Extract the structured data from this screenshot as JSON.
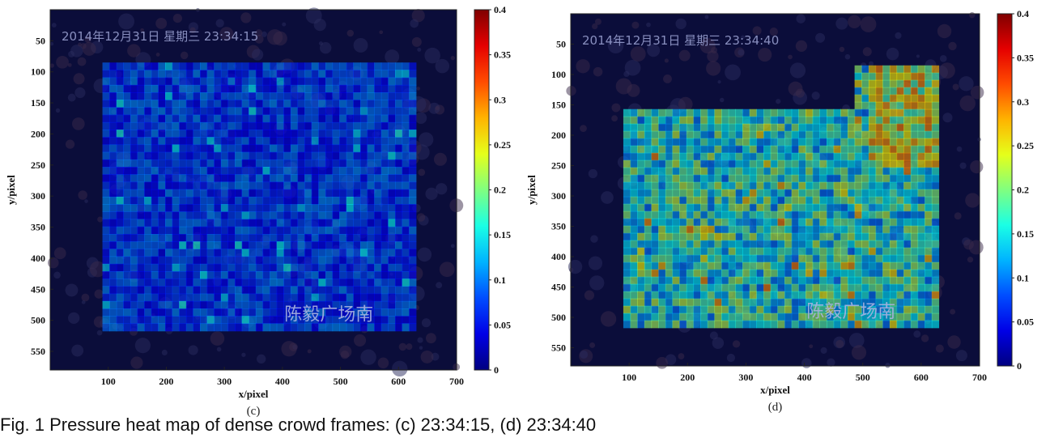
{
  "caption": "Fig. 1 Pressure heat map of dense crowd frames: (c) 23:34:15, (d) 23:34:40",
  "panels": [
    {
      "id": "c",
      "label": "(c)",
      "timestamp": "2014年12月31日 星期三 23:34:15",
      "location": "陈毅广场南",
      "xlabel": "x/pixel",
      "ylabel": "y/pixel"
    },
    {
      "id": "d",
      "label": "(d)",
      "timestamp": "2014年12月31日 星期三 23:34:40",
      "location": "陈毅广场南",
      "xlabel": "x/pixel",
      "ylabel": "y/pixel"
    }
  ],
  "chart_data": [
    {
      "type": "heatmap",
      "title": "",
      "xlabel": "x/pixel",
      "ylabel": "y/pixel",
      "xlim": [
        0,
        700
      ],
      "ylim": [
        0,
        580
      ],
      "y_inverted": true,
      "x_ticks": [
        100,
        200,
        300,
        400,
        500,
        600,
        700
      ],
      "y_ticks": [
        50,
        100,
        150,
        200,
        250,
        300,
        350,
        400,
        450,
        500,
        550
      ],
      "colorbar": {
        "range": [
          0,
          0.4
        ],
        "ticks": [
          0,
          0.05,
          0.1,
          0.15,
          0.2,
          0.25,
          0.3,
          0.35,
          0.4
        ],
        "colormap": "jet"
      },
      "active_region": {
        "x": [
          90,
          625
        ],
        "y": [
          85,
          510
        ],
        "typical_value": 0.08,
        "max_value": 0.16
      }
    },
    {
      "type": "heatmap",
      "title": "",
      "xlabel": "x/pixel",
      "ylabel": "y/pixel",
      "xlim": [
        0,
        700
      ],
      "ylim": [
        0,
        580
      ],
      "y_inverted": true,
      "x_ticks": [
        100,
        200,
        300,
        400,
        500,
        600,
        700
      ],
      "y_ticks": [
        50,
        100,
        150,
        200,
        250,
        300,
        350,
        400,
        450,
        500,
        550
      ],
      "colorbar": {
        "range": [
          0,
          0.4
        ],
        "ticks": [
          0,
          0.05,
          0.1,
          0.15,
          0.2,
          0.25,
          0.3,
          0.35,
          0.4
        ],
        "colormap": "jet"
      },
      "active_region": {
        "x": [
          90,
          625
        ],
        "y": [
          85,
          510
        ],
        "typical_value": 0.17,
        "max_value": 0.3
      }
    }
  ],
  "colors": {
    "background_dark": "#0b0d3a",
    "region_low": "#1a2fb8",
    "region_mid": "#1f9e8a",
    "region_high": "#c7b62a"
  }
}
